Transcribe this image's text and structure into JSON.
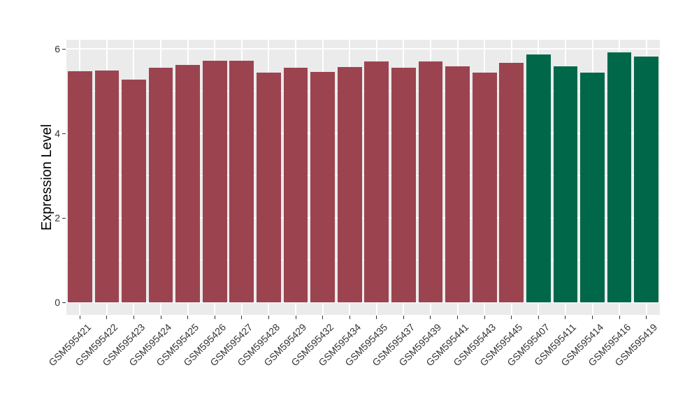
{
  "chart_data": {
    "type": "bar",
    "title": "",
    "xlabel": "",
    "ylabel": "Expression Level",
    "categories": [
      "GSM595421",
      "GSM595422",
      "GSM595423",
      "GSM595424",
      "GSM595425",
      "GSM595426",
      "GSM595427",
      "GSM595428",
      "GSM595429",
      "GSM595432",
      "GSM595434",
      "GSM595435",
      "GSM595437",
      "GSM595439",
      "GSM595441",
      "GSM595443",
      "GSM595445",
      "GSM595407",
      "GSM595411",
      "GSM595414",
      "GSM595416",
      "GSM595419"
    ],
    "values": [
      5.48,
      5.5,
      5.27,
      5.56,
      5.62,
      5.73,
      5.73,
      5.45,
      5.56,
      5.46,
      5.58,
      5.71,
      5.56,
      5.7,
      5.6,
      5.44,
      5.68,
      5.88,
      5.59,
      5.45,
      5.93,
      5.82
    ],
    "bar_groups": [
      "group1",
      "group1",
      "group1",
      "group1",
      "group1",
      "group1",
      "group1",
      "group1",
      "group1",
      "group1",
      "group1",
      "group1",
      "group1",
      "group1",
      "group1",
      "group1",
      "group1",
      "group2",
      "group2",
      "group2",
      "group2",
      "group2"
    ],
    "group_colors": {
      "group1": "#9B4450",
      "group2": "#006849"
    },
    "yticks": [
      0,
      2,
      4,
      6
    ],
    "yticks_minor": [
      1,
      3,
      5
    ],
    "ylim": [
      -0.29,
      6.22
    ],
    "grid": true,
    "legend_position": "none",
    "colors": {
      "panel_background": "#EBEBEB",
      "gridline": "#FFFFFF",
      "axis_text": "#333333",
      "axis_title": "#000000",
      "tick_mark": "#333333",
      "figure_background": "#FFFFFF"
    }
  }
}
